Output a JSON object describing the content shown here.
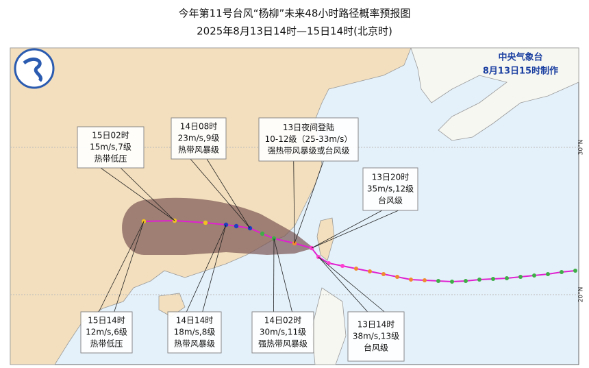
{
  "header": {
    "title": "今年第11号台风“杨柳”未来48小时路径概率预报图",
    "subtitle": "2025年8月13日14时—15日14时(北京时)"
  },
  "issuer": {
    "org": "中央气象台",
    "issued": "8月13日15时制作"
  },
  "latitude_labels": [
    "30°N",
    "20°N"
  ],
  "annotations": [
    {
      "lines": [
        "15日02时",
        "15m/s,7级",
        "热带低压"
      ]
    },
    {
      "lines": [
        "14日08时",
        "23m/s,9级",
        "热带风暴级"
      ]
    },
    {
      "lines": [
        "13日夜间登陆",
        "10-12级（25-33m/s）",
        "强热带风暴级或台风级"
      ]
    },
    {
      "lines": [
        "13日20时",
        "35m/s,12级",
        "台风级"
      ]
    },
    {
      "lines": [
        "15日14时",
        "12m/s,6级",
        "热带低压"
      ]
    },
    {
      "lines": [
        "14日14时",
        "18m/s,8级",
        "热带风暴级"
      ]
    },
    {
      "lines": [
        "14日02时",
        "30m/s,11级",
        "强热带风暴级"
      ]
    },
    {
      "lines": [
        "13日14时",
        "38m/s,13级",
        "台风级"
      ]
    }
  ]
}
